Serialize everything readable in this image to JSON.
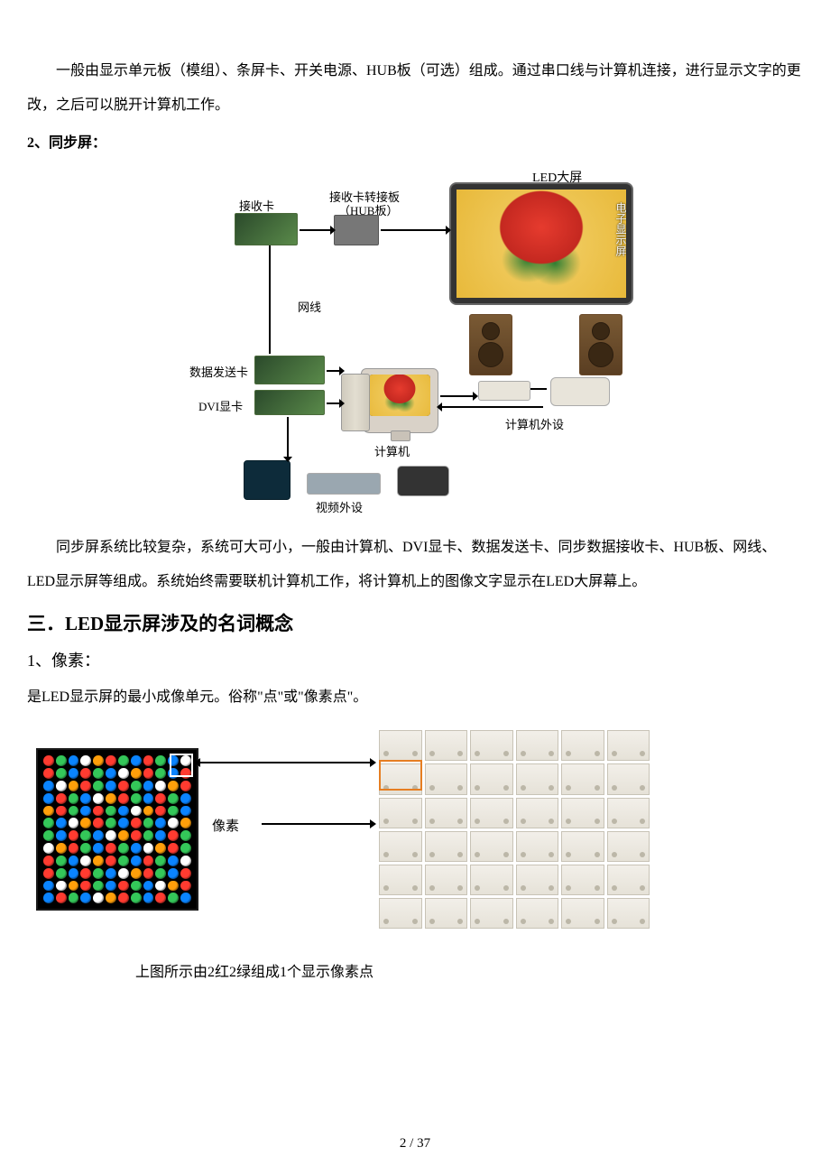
{
  "para1": "一般由显示单元板（模组）、条屏卡、开关电源、HUB板（可选）组成。通过串口线与计算机连接，进行显示文字的更改，之后可以脱开计算机工作。",
  "heading_sync": "2、同步屏：",
  "diagram1": {
    "labels": {
      "led_big": "LED大屏",
      "recv_card": "接收卡",
      "hub_title": "接收卡转接板",
      "hub_sub": "（HUB板）",
      "side_text": "电子显示屏",
      "netline": "网线",
      "send_card": "数据发送卡",
      "dvi_card": "DVI显卡",
      "computer": "计算机",
      "peripherals": "计算机外设",
      "video_peripherals": "视频外设"
    }
  },
  "para2": "同步屏系统比较复杂，系统可大可小，一般由计算机、DVI显卡、数据发送卡、同步数据接收卡、HUB板、网线、LED显示屏等组成。系统始终需要联机计算机工作，将计算机上的图像文字显示在LED大屏幕上。",
  "section3_title": "三．LED显示屏涉及的名词概念",
  "sub_pixel_title": "1、像素：",
  "pixel_desc": "是LED显示屏的最小成像单元。俗称\"点\"或\"像素点\"。",
  "pixel_label": "像素",
  "caption": "上图所示由2红2绿组成1个显示像素点",
  "footer": "2 / 37",
  "led_colors": [
    "#ff3b30",
    "#34c759",
    "#0a84ff",
    "#ffffff",
    "#ff9f0a",
    "#ff3b30",
    "#34c759",
    "#0a84ff"
  ]
}
